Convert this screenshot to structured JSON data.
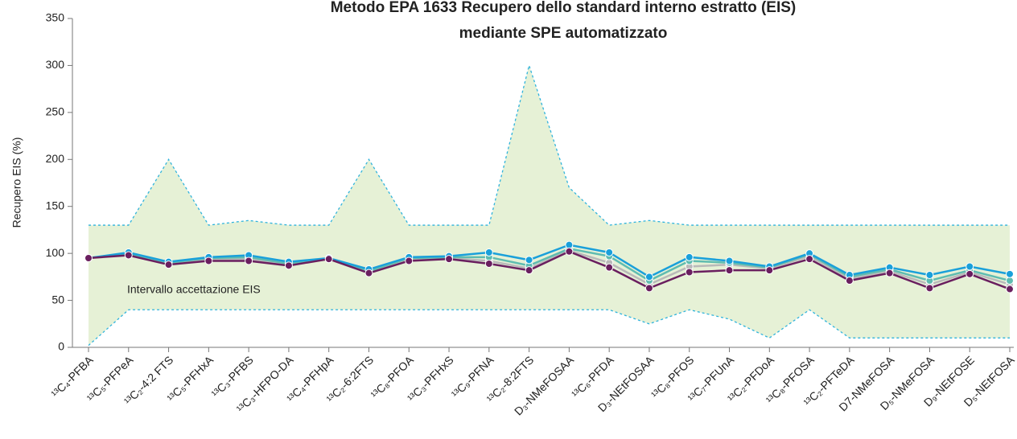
{
  "chart_data": {
    "type": "line",
    "title": [
      "Metodo EPA 1633 Recupero dello standard interno estratto (EIS)",
      "mediante SPE automatizzato"
    ],
    "y_label": "Recupero EIS (%)",
    "categories": [
      "¹³C₄-PFBA",
      "¹³C₅-PFPeA",
      "¹³C₂-4:2 FTS",
      "¹³C₅-PFHxA",
      "¹³C₃-PFBS",
      "¹³C₃-HFPO-DA",
      "¹³C₄-PFHpA",
      "¹³C₂-6:2FTS",
      "¹³C₈-PFOA",
      "¹³C₃-PFHxS",
      "¹³C₉-PFNA",
      "¹³C₂-8:2FTS",
      "D₃-NMeFOSAA",
      "¹³C₆-PFDA",
      "D₃-NEtFOSAA",
      "¹³C₈-PFOS",
      "¹³C₇-PFUnA",
      "¹³C₂-PFDoA",
      "¹³C₈-PFOSA",
      "¹³C₂-PFTeDA",
      "D7-NMeFOSA",
      "D₅-NMeFOSA",
      "D₉-NEtFOSE",
      "D₅-NEtFOSA"
    ],
    "range": {
      "label": "Intervallo accettazione EIS",
      "color": "#e6f1d6",
      "line_color": "#2fb3dc",
      "upper": [
        130,
        130,
        200,
        130,
        135,
        130,
        130,
        200,
        130,
        130,
        130,
        300,
        170,
        130,
        135,
        130,
        130,
        130,
        130,
        130,
        130,
        130,
        130,
        130
      ],
      "lower": [
        2,
        40,
        40,
        40,
        40,
        40,
        40,
        40,
        40,
        40,
        40,
        40,
        40,
        40,
        25,
        40,
        30,
        10,
        40,
        10,
        10,
        10,
        10,
        10
      ]
    },
    "series": [
      {
        "color": "#b9b9b9",
        "values": [
          95,
          99,
          89,
          94,
          94,
          88,
          94,
          80,
          94,
          95,
          92,
          84,
          103,
          90,
          67,
          86,
          88,
          84,
          97,
          73,
          81,
          67,
          80,
          67
        ]
      },
      {
        "color": "#5fbcb0",
        "values": [
          95,
          100,
          90,
          95,
          96,
          89,
          94,
          81,
          95,
          96,
          96,
          87,
          105,
          97,
          71,
          92,
          90,
          85,
          99,
          75,
          83,
          71,
          82,
          71
        ]
      },
      {
        "color": "#1aa0da",
        "values": [
          95,
          101,
          91,
          96,
          98,
          91,
          95,
          83,
          96,
          97,
          101,
          93,
          109,
          101,
          75,
          96,
          92,
          86,
          100,
          77,
          85,
          77,
          86,
          78
        ]
      },
      {
        "color": "#6a1f5f",
        "values": [
          95,
          98,
          88,
          92,
          92,
          87,
          94,
          79,
          92,
          94,
          89,
          82,
          102,
          85,
          63,
          80,
          82,
          82,
          94,
          71,
          79,
          63,
          78,
          62
        ]
      }
    ],
    "ylim": [
      0,
      350
    ],
    "yticks": [
      0,
      50,
      100,
      150,
      200,
      250,
      300,
      350
    ]
  }
}
